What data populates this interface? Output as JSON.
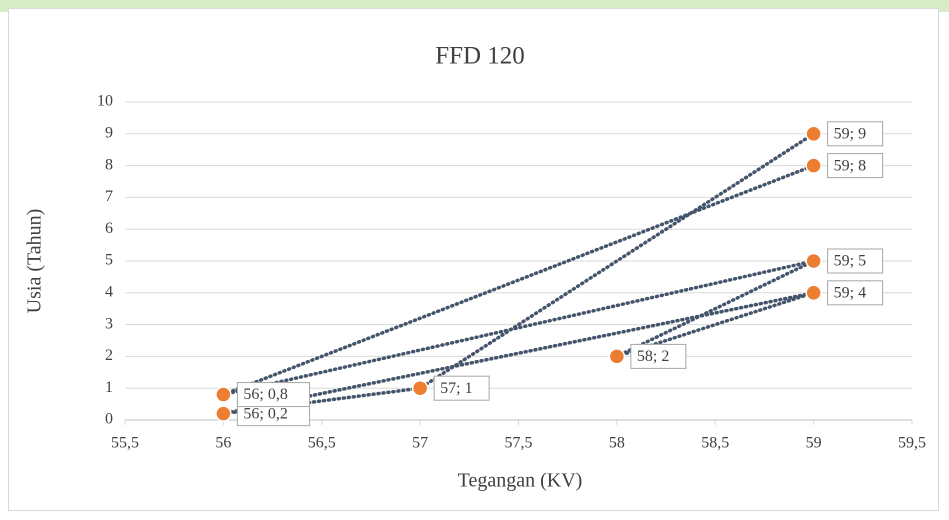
{
  "chart_data": {
    "type": "scatter",
    "title": "FFD 120",
    "x_label": "Tegangan (KV)",
    "y_label": "Usia (Tahun)",
    "x": [
      59,
      57,
      56,
      59,
      58,
      59,
      56,
      59
    ],
    "values": [
      9,
      1,
      0.2,
      4,
      2,
      5,
      0.8,
      8
    ],
    "value_labels": [
      "59; 9",
      "57; 1",
      "56; 0,2",
      "59; 4",
      "58; 2",
      "59; 5",
      "56; 0,8",
      "59; 8"
    ],
    "marker_color": "#ED7D31",
    "line_color": "#44546A",
    "xlim": [
      55.5,
      59.5
    ],
    "xticks": [
      {
        "value": 55.5,
        "label": "55,5"
      },
      56,
      {
        "value": 56.5,
        "label": "56,5"
      },
      57,
      {
        "value": 57.5,
        "label": "57,5"
      },
      58,
      {
        "value": 58.5,
        "label": "58,5"
      },
      59,
      {
        "value": 59.5,
        "label": "59,5"
      }
    ],
    "ylim": [
      0,
      10
    ],
    "yticks": [
      0,
      1,
      2,
      3,
      4,
      5,
      6,
      7,
      8,
      9,
      10
    ],
    "grid": true
  }
}
